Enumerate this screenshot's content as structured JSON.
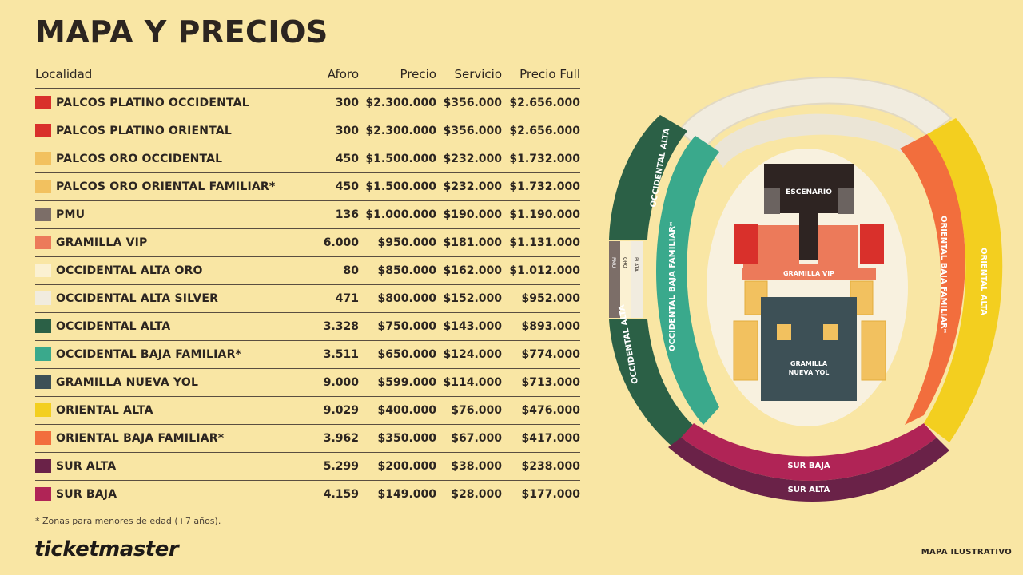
{
  "title": "MAPA Y PRECIOS",
  "headers": {
    "localidad": "Localidad",
    "aforo": "Aforo",
    "precio": "Precio",
    "servicio": "Servicio",
    "full": "Precio Full"
  },
  "rows": [
    {
      "name": "PALCOS PLATINO OCCIDENTAL",
      "color": "#d9302b",
      "aforo": "300",
      "precio": "$2.300.000",
      "servicio": "$356.000",
      "full": "$2.656.000"
    },
    {
      "name": "PALCOS PLATINO ORIENTAL",
      "color": "#d9302b",
      "aforo": "300",
      "precio": "$2.300.000",
      "servicio": "$356.000",
      "full": "$2.656.000"
    },
    {
      "name": "PALCOS ORO OCCIDENTAL",
      "color": "#f2c15f",
      "aforo": "450",
      "precio": "$1.500.000",
      "servicio": "$232.000",
      "full": "$1.732.000"
    },
    {
      "name": "PALCOS ORO ORIENTAL FAMILIAR*",
      "color": "#f2c15f",
      "aforo": "450",
      "precio": "$1.500.000",
      "servicio": "$232.000",
      "full": "$1.732.000"
    },
    {
      "name": "PMU",
      "color": "#7c6e68",
      "aforo": "136",
      "precio": "$1.000.000",
      "servicio": "$190.000",
      "full": "$1.190.000"
    },
    {
      "name": "GRAMILLA VIP",
      "color": "#ec7a5a",
      "aforo": "6.000",
      "precio": "$950.000",
      "servicio": "$181.000",
      "full": "$1.131.000"
    },
    {
      "name": "OCCIDENTAL ALTA ORO",
      "color": "#fbf1d2",
      "aforo": "80",
      "precio": "$850.000",
      "servicio": "$162.000",
      "full": "$1.012.000"
    },
    {
      "name": "OCCIDENTAL ALTA SILVER",
      "color": "#f1ecdf",
      "aforo": "471",
      "precio": "$800.000",
      "servicio": "$152.000",
      "full": "$952.000"
    },
    {
      "name": "OCCIDENTAL ALTA",
      "color": "#2b6046",
      "aforo": "3.328",
      "precio": "$750.000",
      "servicio": "$143.000",
      "full": "$893.000"
    },
    {
      "name": "OCCIDENTAL BAJA FAMILIAR*",
      "color": "#3aa98c",
      "aforo": "3.511",
      "precio": "$650.000",
      "servicio": "$124.000",
      "full": "$774.000"
    },
    {
      "name": "GRAMILLA NUEVA YOL",
      "color": "#3d5056",
      "aforo": "9.000",
      "precio": "$599.000",
      "servicio": "$114.000",
      "full": "$713.000"
    },
    {
      "name": "ORIENTAL ALTA",
      "color": "#f3cf1f",
      "aforo": "9.029",
      "precio": "$400.000",
      "servicio": "$76.000",
      "full": "$476.000"
    },
    {
      "name": "ORIENTAL BAJA FAMILIAR*",
      "color": "#f26e3d",
      "aforo": "3.962",
      "precio": "$350.000",
      "servicio": "$67.000",
      "full": "$417.000"
    },
    {
      "name": "SUR ALTA",
      "color": "#6a2248",
      "aforo": "5.299",
      "precio": "$200.000",
      "servicio": "$38.000",
      "full": "$238.000"
    },
    {
      "name": "SUR BAJA",
      "color": "#b02456",
      "aforo": "4.159",
      "precio": "$149.000",
      "servicio": "$28.000",
      "full": "$177.000"
    }
  ],
  "note": "* Zonas para menores de edad (+7 años).",
  "brand": "ticketmaster",
  "map": {
    "caption": "MAPA ILUSTRATIVO",
    "escenario": "ESCENARIO",
    "gramilla_vip": "GRAMILLA VIP",
    "gramilla_nueva_1": "GRAMILLA",
    "gramilla_nueva_2": "NUEVA YOL",
    "occidental_alta_top": "OCCIDENTAL ALTA",
    "occidental_alta_bottom": "OCCIDENTAL ALTA",
    "occidental_baja": "OCCIDENTAL BAJA FAMILIAR*",
    "oriental_baja": "ORIENTAL BAJA FAMILIAR*",
    "oriental_alta": "ORIENTAL ALTA",
    "sur_baja": "SUR BAJA",
    "sur_alta": "SUR ALTA",
    "pmu": "PMU",
    "oro": "ORO",
    "plata": "PLATA"
  }
}
